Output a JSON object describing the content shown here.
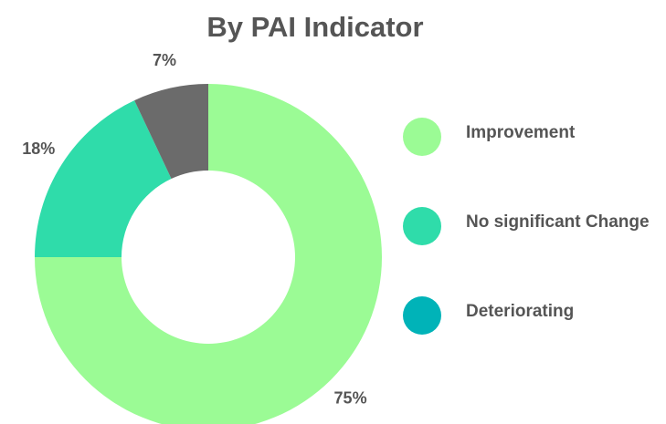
{
  "chart_data": {
    "type": "donut",
    "title": "By PAI Indicator",
    "categories": [
      "Improvement",
      "No significant Change",
      "Deteriorating"
    ],
    "values": [
      75,
      18,
      7
    ],
    "value_labels": [
      "75%",
      "18%",
      "7%"
    ],
    "colors": [
      "#9bfb95",
      "#2fdcaa",
      "#6b6b6b"
    ],
    "legend_colors": [
      "#9bfb95",
      "#2fdcaa",
      "#00b3b8"
    ]
  }
}
